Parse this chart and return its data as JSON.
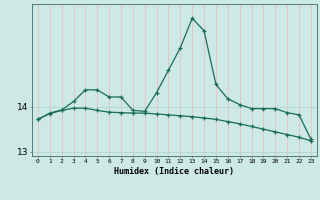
{
  "x": [
    0,
    1,
    2,
    3,
    4,
    5,
    6,
    7,
    8,
    9,
    10,
    11,
    12,
    13,
    14,
    15,
    16,
    17,
    18,
    19,
    20,
    21,
    22,
    23
  ],
  "line1": [
    13.72,
    13.85,
    13.92,
    13.97,
    13.97,
    13.92,
    13.88,
    13.87,
    13.86,
    13.86,
    13.84,
    13.82,
    13.8,
    13.78,
    13.75,
    13.72,
    13.67,
    13.62,
    13.56,
    13.5,
    13.44,
    13.38,
    13.32,
    13.24
  ],
  "line2": [
    13.72,
    13.86,
    13.93,
    14.12,
    14.38,
    14.38,
    14.22,
    14.22,
    13.92,
    13.9,
    14.32,
    14.82,
    15.32,
    15.98,
    15.7,
    14.5,
    14.18,
    14.05,
    13.96,
    13.96,
    13.96,
    13.87,
    13.82,
    13.28
  ],
  "xlim": [
    -0.5,
    23.5
  ],
  "ylim": [
    12.9,
    16.3
  ],
  "yticks": [
    13,
    14
  ],
  "xtick_labels": [
    "0",
    "1",
    "2",
    "3",
    "4",
    "5",
    "6",
    "7",
    "8",
    "9",
    "10",
    "11",
    "12",
    "13",
    "14",
    "15",
    "16",
    "17",
    "18",
    "19",
    "20",
    "21",
    "22",
    "23"
  ],
  "xlabel": "Humidex (Indice chaleur)",
  "line_color": "#1a6b5a",
  "bg_color": "#cce9e5",
  "hgrid_color": "#aad4cf",
  "vgrid_color": "#f0b8b8",
  "marker": "+",
  "linewidth": 0.9,
  "markersize": 3.5,
  "markeredgewidth": 0.9,
  "xlabel_fontsize": 6,
  "xtick_fontsize": 4.5,
  "ytick_fontsize": 6.5
}
